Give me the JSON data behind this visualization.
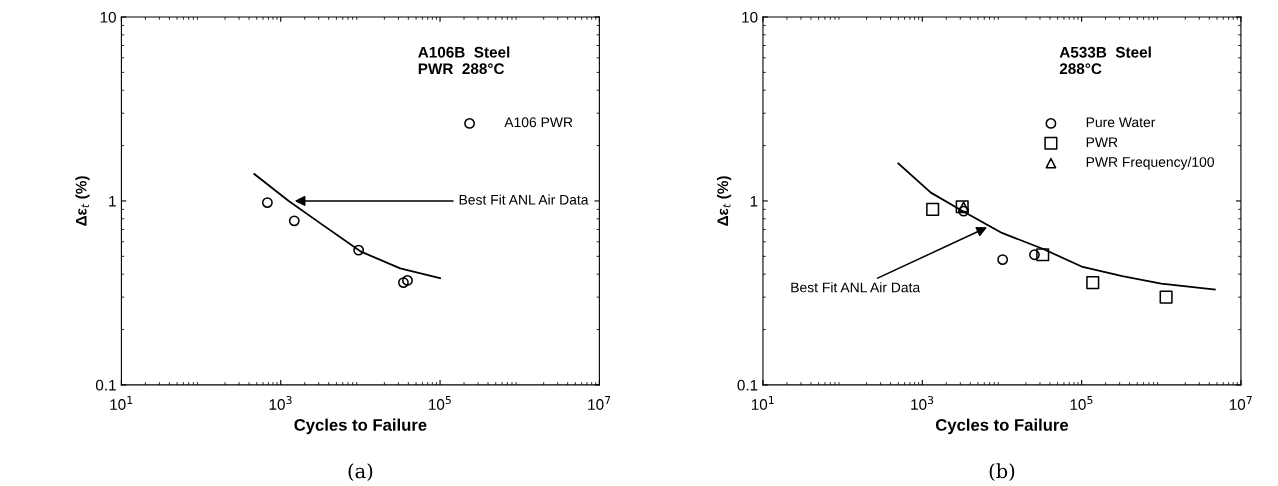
{
  "chart_data": [
    {
      "type": "scatter",
      "xlabel": "Cycles to Failure",
      "ylabel": "Δε$_{t}$ (%)",
      "log": "xy",
      "grid": false,
      "legend": "top right",
      "xlim": [
        10,
        10000000
      ],
      "ylim": [
        0.1,
        10
      ],
      "xticks": [
        {
          "value": 10,
          "label": "10$^{1}$"
        },
        {
          "value": 1000,
          "label": "10$^{3}$"
        },
        {
          "value": 100000,
          "label": "10$^{5}$"
        },
        {
          "value": 10000000,
          "label": "10$^{7}$"
        }
      ],
      "yticks": [
        0.1,
        1,
        10
      ],
      "annotations": [
        "A106B  Steel\nPWR  288°C",
        "(a)",
        {
          "text": "Best Fit ANL Air Data",
          "x": 1380,
          "y": 1.0
        }
      ],
      "series": [
        {
          "type": "line",
          "color": "#000000",
          "marker": "none",
          "x": [
            466,
            1260,
            3090,
            10200,
            31600,
            100000
          ],
          "values": [
            1.4,
            1.0,
            0.76,
            0.53,
            0.43,
            0.38
          ]
        },
        {
          "name": "A106 PWR",
          "color": "#000000",
          "marker": "circle",
          "x": [
            680,
            1480,
            9500,
            34700,
            39000
          ],
          "values": [
            0.98,
            0.78,
            0.54,
            0.36,
            0.37
          ]
        }
      ]
    },
    {
      "type": "scatter",
      "xlabel": "Cycles to Failure",
      "ylabel": "Δε$_{t}$ (%)",
      "log": "xy",
      "grid": false,
      "legend": "top right",
      "xlim": [
        10,
        10000000
      ],
      "ylim": [
        0.1,
        10
      ],
      "xticks": [
        {
          "value": 10,
          "label": "10$^{1}$"
        },
        {
          "value": 1000,
          "label": "10$^{3}$"
        },
        {
          "value": 100000,
          "label": "10$^{5}$"
        },
        {
          "value": 10000000,
          "label": "10$^{7}$"
        }
      ],
      "yticks": [
        0.1,
        1,
        10
      ],
      "annotations": [
        "A533B  Steel\n288°C",
        "(b)",
        {
          "text": "Best Fit ANL Air Data",
          "x": 7000,
          "y": 0.73
        }
      ],
      "series": [
        {
          "type": "line",
          "color": "#000000",
          "marker": "none",
          "x": [
            500,
            1280,
            3240,
            10000,
            32400,
            100000,
            324000,
            1000000,
            4700000
          ],
          "values": [
            1.6,
            1.11,
            0.88,
            0.67,
            0.55,
            0.44,
            0.39,
            0.355,
            0.33
          ]
        },
        {
          "name": "Pure Water",
          "color": "#000000",
          "marker": "circle",
          "x": [
            3300,
            10200,
            25600
          ],
          "values": [
            0.88,
            0.48,
            0.51
          ]
        },
        {
          "name": "PWR",
          "color": "#000000",
          "marker": "square",
          "x": [
            1350,
            3170,
            32500,
            138000,
            1150000
          ],
          "values": [
            0.9,
            0.93,
            0.51,
            0.36,
            0.3
          ]
        },
        {
          "name": "PWR Frequency/100",
          "color": "#000000",
          "marker": "triangle",
          "x": [
            3300
          ],
          "values": [
            0.93
          ]
        }
      ]
    }
  ]
}
